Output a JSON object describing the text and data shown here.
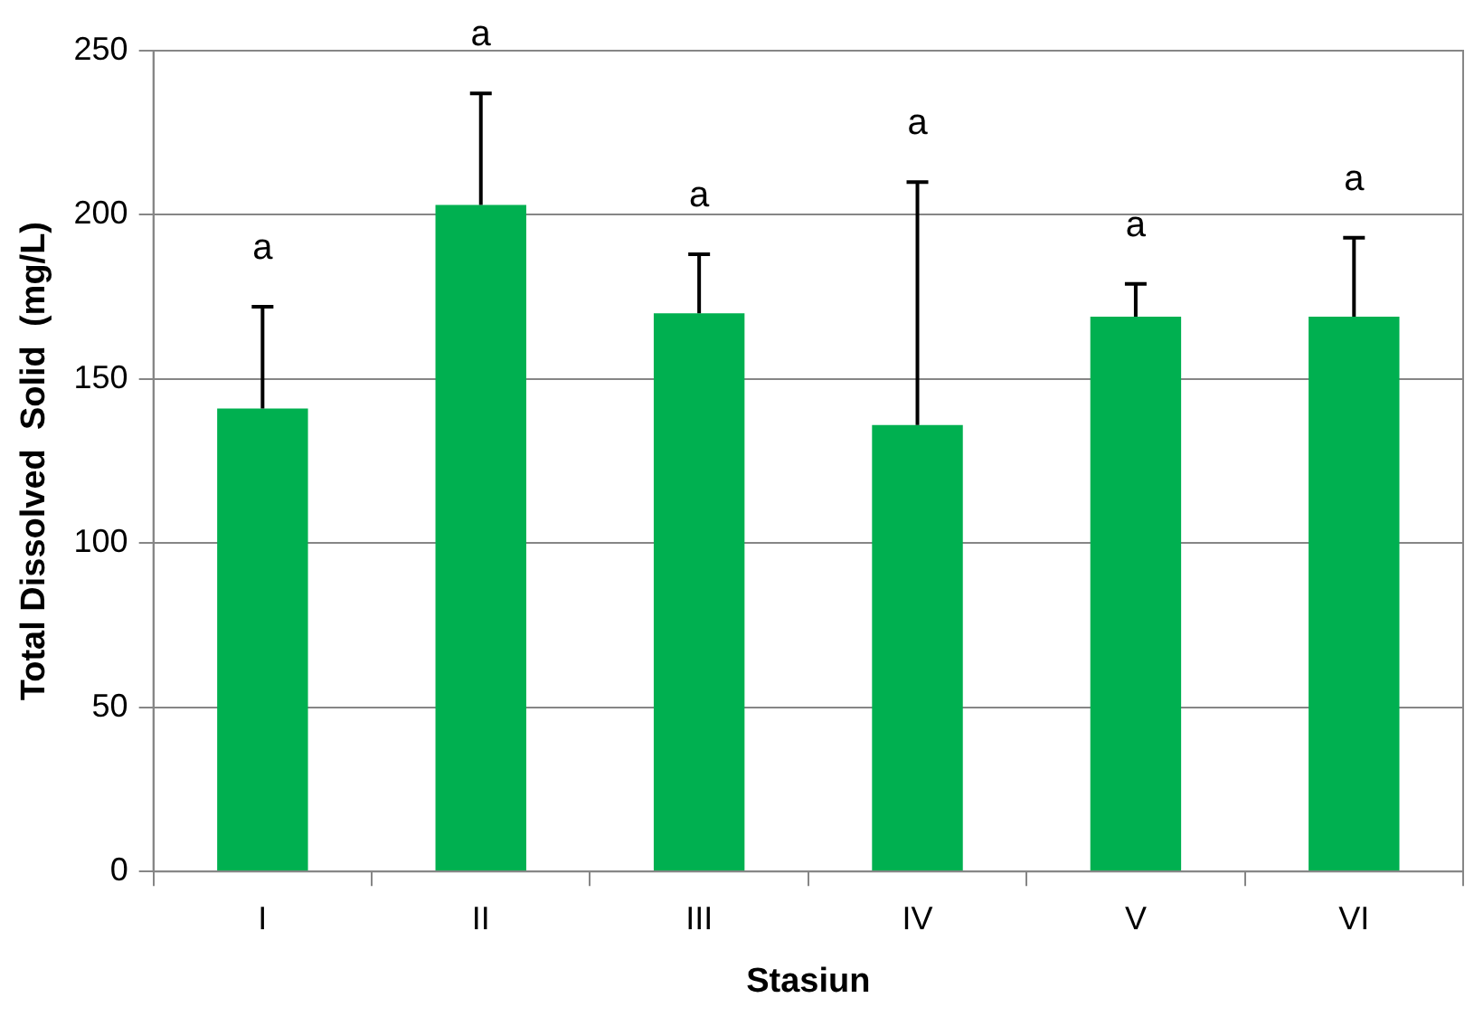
{
  "chart_data": {
    "type": "bar",
    "xlabel": "Stasiun",
    "ylabel": "Total Dissolved  Solid  (mg/L)",
    "categories": [
      "I",
      "II",
      "III",
      "IV",
      "V",
      "VI"
    ],
    "values": [
      141,
      203,
      170,
      136,
      169,
      169
    ],
    "errors": [
      [
        141,
        172
      ],
      [
        203,
        237
      ],
      [
        170,
        188
      ],
      [
        136,
        210
      ],
      [
        169,
        179
      ],
      [
        169,
        193
      ]
    ],
    "color": "#00b050",
    "ylim": [
      0,
      250
    ],
    "yticks": [
      0,
      50,
      100,
      150,
      200,
      250
    ],
    "grid": "y",
    "legend": false,
    "annotations": [
      "a",
      "a",
      "a",
      "a",
      "a",
      "a"
    ]
  }
}
